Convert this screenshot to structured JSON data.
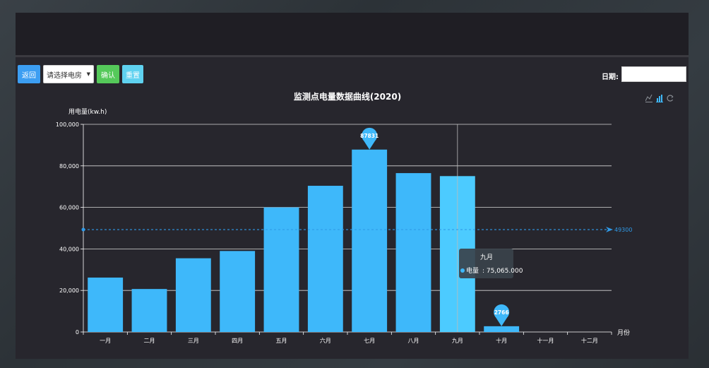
{
  "toolbar": {
    "back_label": "返回",
    "select_label": "请选择电房",
    "confirm_label": "确认",
    "reset_label": "重置",
    "date_label": "日期:",
    "date_value": ""
  },
  "toolbox_icons": [
    "line-switch-icon",
    "bar-switch-icon",
    "restore-icon"
  ],
  "colors": {
    "bar": "#3eb8fa",
    "bar_highlight": "#4ccbff",
    "markline": "#2f9ae8",
    "axis_text": "#ffffff",
    "grid": "#d8d8d8",
    "tooltip_bg": "#39424b"
  },
  "chart_data": {
    "type": "bar",
    "title": "监测点电量数据曲线(2020)",
    "ylabel": "用电量(kw.h)",
    "xlabel": "月份",
    "ylim": [
      0,
      100000
    ],
    "yticks": [
      "0",
      "20,000",
      "40,000",
      "60,000",
      "80,000",
      "100,000"
    ],
    "categories": [
      "一月",
      "二月",
      "三月",
      "四月",
      "五月",
      "六月",
      "七月",
      "八月",
      "九月",
      "十月",
      "十一月",
      "十二月"
    ],
    "series": [
      {
        "name": "电量",
        "values": [
          26200,
          20700,
          35500,
          39000,
          60000,
          70400,
          87831,
          76500,
          75065,
          2766,
          0,
          0
        ]
      }
    ],
    "mark_points": [
      {
        "label": "87831",
        "category": "七月",
        "value": 87831
      },
      {
        "label": "2766",
        "category": "十月",
        "value": 2766
      }
    ],
    "mark_line": {
      "label": "49300",
      "value": 49300
    },
    "highlighted_category": "九月",
    "tooltip": {
      "title": "九月",
      "series_name": "电量",
      "value_text": "75,065.000"
    },
    "grid": true
  }
}
